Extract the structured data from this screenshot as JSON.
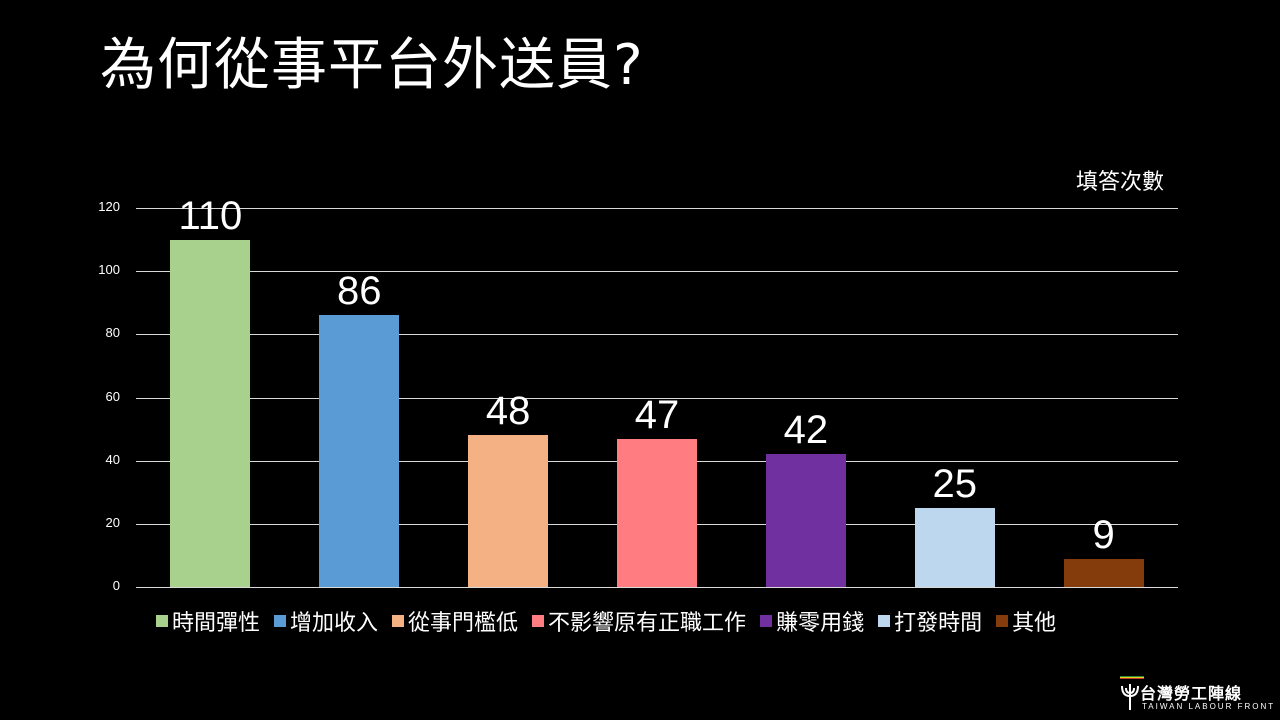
{
  "slide": {
    "title": "為何從事平台外送員?",
    "unit_label": "填答次數"
  },
  "chart_data": {
    "type": "bar",
    "title": "為何從事平台外送員?",
    "xlabel": "",
    "ylabel": "填答次數",
    "ylim": [
      0,
      120
    ],
    "yticks": [
      0,
      20,
      40,
      60,
      80,
      100,
      120
    ],
    "grid": true,
    "legend_position": "bottom",
    "categories": [
      "時間彈性",
      "增加收入",
      "從事門檻低",
      "不影響原有正職工作",
      "賺零用錢",
      "打發時間",
      "其他"
    ],
    "values": [
      110,
      86,
      48,
      47,
      42,
      25,
      9
    ],
    "colors": [
      "#a9d18e",
      "#5b9bd5",
      "#f4b183",
      "#ff7c80",
      "#7030a0",
      "#bdd7ee",
      "#843c0c"
    ],
    "data_labels": [
      "110",
      "86",
      "48",
      "47",
      "42",
      "25",
      "9"
    ]
  },
  "logo": {
    "name_zh": "台灣勞工陣線",
    "name_en": "TAIWAN LABOUR FRONT",
    "stripe_colors": [
      "#2e8b3a",
      "#e8d21a",
      "#c0392b"
    ]
  }
}
